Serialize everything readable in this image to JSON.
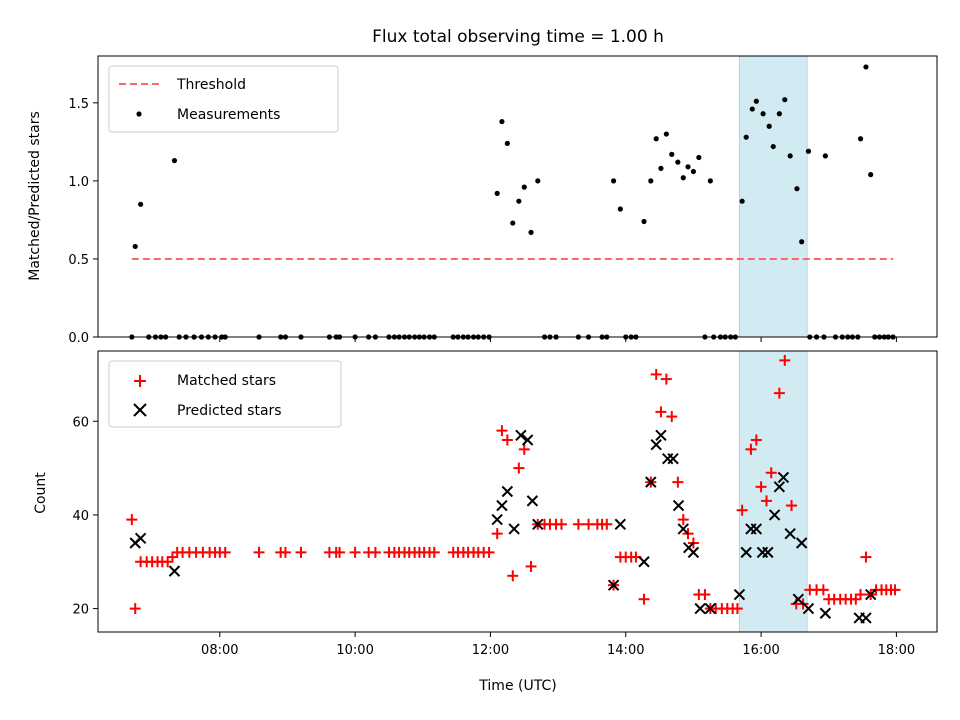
{
  "title": "Flux total observing time = 1.00 h",
  "chart_data": [
    {
      "type": "scatter",
      "panel": "top",
      "ylabel": "Matched/Predicted stars",
      "xlabel": "",
      "ylim": [
        0,
        1.8
      ],
      "xlim": [
        6.2,
        18.6
      ],
      "y_ticks": [
        0.0,
        0.5,
        1.0,
        1.5
      ],
      "y_tick_labels": [
        "0.0",
        "0.5",
        "1.0",
        "1.5"
      ],
      "grid": false,
      "legend_position": "upper-left",
      "highlight_span": {
        "x": [
          15.68,
          16.68
        ],
        "color": "#add8e6"
      },
      "threshold": {
        "name": "Threshold",
        "value": 0.5,
        "x": [
          6.7,
          17.95
        ],
        "color": "#ff6666",
        "style": "dashed"
      },
      "series": [
        {
          "name": "Measurements",
          "color": "#000000",
          "marker": "dot",
          "points": [
            [
              6.7,
              0
            ],
            [
              6.75,
              0.58
            ],
            [
              6.83,
              0.85
            ],
            [
              6.95,
              0
            ],
            [
              7.05,
              0
            ],
            [
              7.13,
              0
            ],
            [
              7.2,
              0
            ],
            [
              7.33,
              1.13
            ],
            [
              7.4,
              0
            ],
            [
              7.5,
              0
            ],
            [
              7.62,
              0
            ],
            [
              7.73,
              0
            ],
            [
              7.83,
              0
            ],
            [
              7.93,
              0
            ],
            [
              8.03,
              0
            ],
            [
              8.08,
              0
            ],
            [
              8.58,
              0
            ],
            [
              8.9,
              0
            ],
            [
              8.97,
              0
            ],
            [
              9.2,
              0
            ],
            [
              9.62,
              0
            ],
            [
              9.72,
              0
            ],
            [
              9.77,
              0
            ],
            [
              10.0,
              0
            ],
            [
              10.2,
              0
            ],
            [
              10.3,
              0
            ],
            [
              10.5,
              0
            ],
            [
              10.58,
              0
            ],
            [
              10.65,
              0
            ],
            [
              10.73,
              0
            ],
            [
              10.8,
              0
            ],
            [
              10.88,
              0
            ],
            [
              10.95,
              0
            ],
            [
              11.02,
              0
            ],
            [
              11.1,
              0
            ],
            [
              11.17,
              0
            ],
            [
              11.45,
              0
            ],
            [
              11.52,
              0
            ],
            [
              11.6,
              0
            ],
            [
              11.67,
              0
            ],
            [
              11.75,
              0
            ],
            [
              11.82,
              0
            ],
            [
              11.9,
              0
            ],
            [
              11.98,
              0
            ],
            [
              12.1,
              0.92
            ],
            [
              12.17,
              1.38
            ],
            [
              12.25,
              1.24
            ],
            [
              12.33,
              0.73
            ],
            [
              12.42,
              0.87
            ],
            [
              12.5,
              0.96
            ],
            [
              12.6,
              0.67
            ],
            [
              12.7,
              1.0
            ],
            [
              12.8,
              0
            ],
            [
              12.88,
              0
            ],
            [
              12.97,
              0
            ],
            [
              13.3,
              0
            ],
            [
              13.45,
              0
            ],
            [
              13.65,
              0
            ],
            [
              13.72,
              0
            ],
            [
              13.82,
              1.0
            ],
            [
              13.92,
              0.82
            ],
            [
              14.0,
              0
            ],
            [
              14.08,
              0
            ],
            [
              14.15,
              0
            ],
            [
              14.27,
              0.74
            ],
            [
              14.37,
              1.0
            ],
            [
              14.45,
              1.27
            ],
            [
              14.52,
              1.08
            ],
            [
              14.6,
              1.3
            ],
            [
              14.68,
              1.17
            ],
            [
              14.77,
              1.12
            ],
            [
              14.85,
              1.02
            ],
            [
              14.92,
              1.09
            ],
            [
              15.0,
              1.06
            ],
            [
              15.08,
              1.15
            ],
            [
              15.25,
              1.0
            ],
            [
              15.17,
              0
            ],
            [
              15.3,
              0
            ],
            [
              15.4,
              0
            ],
            [
              15.47,
              0
            ],
            [
              15.55,
              0
            ],
            [
              15.62,
              0
            ],
            [
              15.72,
              0.87
            ],
            [
              15.78,
              1.28
            ],
            [
              15.87,
              1.46
            ],
            [
              15.93,
              1.51
            ],
            [
              16.03,
              1.43
            ],
            [
              16.12,
              1.35
            ],
            [
              16.18,
              1.22
            ],
            [
              16.27,
              1.43
            ],
            [
              16.35,
              1.52
            ],
            [
              16.43,
              1.16
            ],
            [
              16.53,
              0.95
            ],
            [
              16.6,
              0.61
            ],
            [
              16.7,
              1.19
            ],
            [
              16.95,
              1.16
            ],
            [
              16.72,
              0
            ],
            [
              16.82,
              0
            ],
            [
              16.93,
              0
            ],
            [
              17.1,
              0
            ],
            [
              17.2,
              0
            ],
            [
              17.28,
              0
            ],
            [
              17.35,
              0
            ],
            [
              17.43,
              0
            ],
            [
              17.47,
              1.27
            ],
            [
              17.55,
              1.73
            ],
            [
              17.62,
              1.04
            ],
            [
              17.68,
              0
            ],
            [
              17.75,
              0
            ],
            [
              17.82,
              0
            ],
            [
              17.88,
              0
            ],
            [
              17.95,
              0
            ]
          ]
        }
      ]
    },
    {
      "type": "scatter",
      "panel": "bottom",
      "ylabel": "Count",
      "xlabel": "Time (UTC)",
      "ylim": [
        15,
        75
      ],
      "xlim": [
        6.2,
        18.6
      ],
      "x_ticks": [
        8,
        10,
        12,
        14,
        16,
        18
      ],
      "x_tick_labels": [
        "08:00",
        "10:00",
        "12:00",
        "14:00",
        "16:00",
        "18:00"
      ],
      "y_ticks": [
        20,
        40,
        60
      ],
      "y_tick_labels": [
        "20",
        "40",
        "60"
      ],
      "grid": false,
      "legend_position": "upper-left",
      "highlight_span": {
        "x": [
          15.68,
          16.68
        ],
        "color": "#add8e6"
      },
      "series": [
        {
          "name": "Matched stars",
          "color": "#ff0000",
          "marker": "plus",
          "points": [
            [
              6.7,
              39
            ],
            [
              6.75,
              20
            ],
            [
              6.83,
              30
            ],
            [
              6.92,
              30
            ],
            [
              7.0,
              30
            ],
            [
              7.08,
              30
            ],
            [
              7.15,
              30
            ],
            [
              7.23,
              30
            ],
            [
              7.3,
              31
            ],
            [
              7.37,
              32
            ],
            [
              7.45,
              32
            ],
            [
              7.55,
              32
            ],
            [
              7.65,
              32
            ],
            [
              7.75,
              32
            ],
            [
              7.85,
              32
            ],
            [
              7.93,
              32
            ],
            [
              8.0,
              32
            ],
            [
              8.08,
              32
            ],
            [
              8.58,
              32
            ],
            [
              8.9,
              32
            ],
            [
              8.97,
              32
            ],
            [
              9.2,
              32
            ],
            [
              9.62,
              32
            ],
            [
              9.72,
              32
            ],
            [
              9.77,
              32
            ],
            [
              10.0,
              32
            ],
            [
              10.2,
              32
            ],
            [
              10.3,
              32
            ],
            [
              10.5,
              32
            ],
            [
              10.58,
              32
            ],
            [
              10.65,
              32
            ],
            [
              10.73,
              32
            ],
            [
              10.8,
              32
            ],
            [
              10.88,
              32
            ],
            [
              10.95,
              32
            ],
            [
              11.02,
              32
            ],
            [
              11.1,
              32
            ],
            [
              11.17,
              32
            ],
            [
              11.45,
              32
            ],
            [
              11.52,
              32
            ],
            [
              11.6,
              32
            ],
            [
              11.67,
              32
            ],
            [
              11.75,
              32
            ],
            [
              11.82,
              32
            ],
            [
              11.9,
              32
            ],
            [
              11.98,
              32
            ],
            [
              12.1,
              36
            ],
            [
              12.17,
              58
            ],
            [
              12.25,
              56
            ],
            [
              12.33,
              27
            ],
            [
              12.42,
              50
            ],
            [
              12.5,
              54
            ],
            [
              12.6,
              29
            ],
            [
              12.7,
              38
            ],
            [
              12.8,
              38
            ],
            [
              12.88,
              38
            ],
            [
              12.97,
              38
            ],
            [
              13.05,
              38
            ],
            [
              13.3,
              38
            ],
            [
              13.45,
              38
            ],
            [
              13.58,
              38
            ],
            [
              13.65,
              38
            ],
            [
              13.72,
              38
            ],
            [
              13.82,
              25
            ],
            [
              13.92,
              31
            ],
            [
              14.0,
              31
            ],
            [
              14.08,
              31
            ],
            [
              14.15,
              31
            ],
            [
              14.27,
              22
            ],
            [
              14.37,
              47
            ],
            [
              14.45,
              70
            ],
            [
              14.52,
              62
            ],
            [
              14.6,
              69
            ],
            [
              14.68,
              61
            ],
            [
              14.77,
              47
            ],
            [
              14.85,
              39
            ],
            [
              14.92,
              36
            ],
            [
              15.0,
              34
            ],
            [
              15.08,
              23
            ],
            [
              15.17,
              23
            ],
            [
              15.25,
              20
            ],
            [
              15.33,
              20
            ],
            [
              15.42,
              20
            ],
            [
              15.5,
              20
            ],
            [
              15.58,
              20
            ],
            [
              15.65,
              20
            ],
            [
              15.72,
              41
            ],
            [
              15.85,
              54
            ],
            [
              15.93,
              56
            ],
            [
              16.0,
              46
            ],
            [
              16.08,
              43
            ],
            [
              16.15,
              49
            ],
            [
              16.27,
              66
            ],
            [
              16.35,
              73
            ],
            [
              16.45,
              42
            ],
            [
              16.52,
              21
            ],
            [
              16.62,
              21
            ],
            [
              16.72,
              24
            ],
            [
              16.82,
              24
            ],
            [
              16.92,
              24
            ],
            [
              17.0,
              22
            ],
            [
              17.08,
              22
            ],
            [
              17.17,
              22
            ],
            [
              17.25,
              22
            ],
            [
              17.33,
              22
            ],
            [
              17.4,
              22
            ],
            [
              17.47,
              23
            ],
            [
              17.55,
              31
            ],
            [
              17.62,
              23
            ],
            [
              17.7,
              24
            ],
            [
              17.78,
              24
            ],
            [
              17.85,
              24
            ],
            [
              17.92,
              24
            ],
            [
              17.98,
              24
            ]
          ]
        },
        {
          "name": "Predicted stars",
          "color": "#000000",
          "marker": "cross",
          "points": [
            [
              6.75,
              34
            ],
            [
              6.83,
              35
            ],
            [
              7.33,
              28
            ],
            [
              12.1,
              39
            ],
            [
              12.17,
              42
            ],
            [
              12.25,
              45
            ],
            [
              12.35,
              37
            ],
            [
              12.45,
              57
            ],
            [
              12.55,
              56
            ],
            [
              12.62,
              43
            ],
            [
              12.7,
              38
            ],
            [
              13.82,
              25
            ],
            [
              13.92,
              38
            ],
            [
              14.27,
              30
            ],
            [
              14.37,
              47
            ],
            [
              14.45,
              55
            ],
            [
              14.52,
              57
            ],
            [
              14.62,
              52
            ],
            [
              14.7,
              52
            ],
            [
              14.78,
              42
            ],
            [
              14.85,
              37
            ],
            [
              14.93,
              33
            ],
            [
              15.0,
              32
            ],
            [
              15.1,
              20
            ],
            [
              15.25,
              20
            ],
            [
              15.68,
              23
            ],
            [
              15.78,
              32
            ],
            [
              15.85,
              37
            ],
            [
              15.93,
              37
            ],
            [
              16.02,
              32
            ],
            [
              16.1,
              32
            ],
            [
              16.2,
              40
            ],
            [
              16.27,
              46
            ],
            [
              16.33,
              48
            ],
            [
              16.43,
              36
            ],
            [
              16.55,
              22
            ],
            [
              16.6,
              34
            ],
            [
              16.7,
              20
            ],
            [
              16.95,
              19
            ],
            [
              17.45,
              18
            ],
            [
              17.55,
              18
            ],
            [
              17.62,
              23
            ]
          ]
        }
      ]
    }
  ]
}
